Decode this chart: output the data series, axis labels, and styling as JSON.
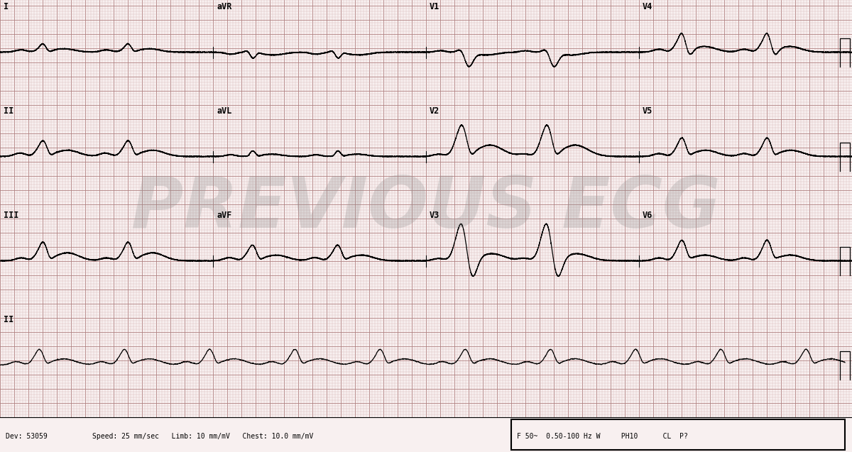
{
  "background_color": "#f8f0f0",
  "grid_minor_color": "#d4b0b0",
  "grid_major_color": "#b08080",
  "ecg_color": "#000000",
  "watermark_text": "PREVIOUS ECG",
  "watermark_color": "#909090",
  "watermark_alpha": 0.28,
  "bottom_text": "Dev: 53059",
  "bottom_info": "Speed: 25 mm/sec   Limb: 10 mm/mV   Chest: 10.0 mm/mV",
  "bottom_right": "F 50~  0.50-100 Hz W     PH10      CL  P?",
  "fig_width": 12.0,
  "fig_height": 6.37,
  "dpi": 100
}
